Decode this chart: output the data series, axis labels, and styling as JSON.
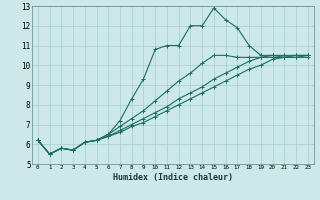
{
  "xlabel": "Humidex (Indice chaleur)",
  "ylabel": "",
  "bg_color": "#cce8e8",
  "grid_color": "#aacccc",
  "line_color": "#1a6e62",
  "xlim": [
    -0.5,
    23.5
  ],
  "ylim": [
    5,
    13
  ],
  "xticks": [
    0,
    1,
    2,
    3,
    4,
    5,
    6,
    7,
    8,
    9,
    10,
    11,
    12,
    13,
    14,
    15,
    16,
    17,
    18,
    19,
    20,
    21,
    22,
    23
  ],
  "yticks": [
    5,
    6,
    7,
    8,
    9,
    10,
    11,
    12,
    13
  ],
  "series": [
    [
      6.2,
      5.5,
      5.8,
      5.7,
      6.1,
      6.2,
      6.5,
      7.2,
      8.3,
      9.3,
      10.8,
      11.0,
      11.0,
      12.0,
      12.0,
      12.9,
      12.3,
      11.9,
      11.0,
      10.5,
      10.5,
      10.4,
      10.5,
      10.5
    ],
    [
      6.2,
      5.5,
      5.8,
      5.7,
      6.1,
      6.2,
      6.5,
      6.9,
      7.3,
      7.7,
      8.2,
      8.7,
      9.2,
      9.6,
      10.1,
      10.5,
      10.5,
      10.4,
      10.4,
      10.4,
      10.4,
      10.4,
      10.4,
      10.4
    ],
    [
      6.2,
      5.5,
      5.8,
      5.7,
      6.1,
      6.2,
      6.4,
      6.7,
      7.0,
      7.3,
      7.6,
      7.9,
      8.3,
      8.6,
      8.9,
      9.3,
      9.6,
      9.9,
      10.2,
      10.4,
      10.5,
      10.5,
      10.5,
      10.5
    ],
    [
      6.2,
      5.5,
      5.8,
      5.7,
      6.1,
      6.2,
      6.4,
      6.6,
      6.9,
      7.1,
      7.4,
      7.7,
      8.0,
      8.3,
      8.6,
      8.9,
      9.2,
      9.5,
      9.8,
      10.0,
      10.3,
      10.4,
      10.4,
      10.5
    ]
  ]
}
